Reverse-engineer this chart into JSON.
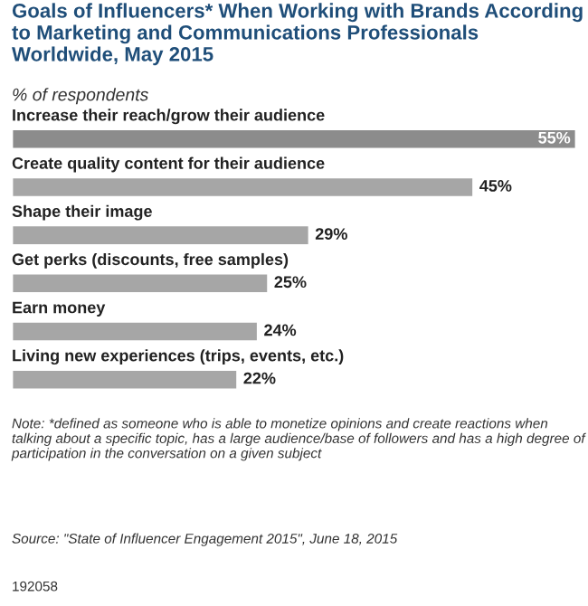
{
  "chart_data": {
    "type": "bar",
    "orientation": "horizontal",
    "title": "Goals of Influencers* When Working with Brands According to Marketing and Communications Professionals Worldwide, May 2015",
    "subtitle": "% of respondents",
    "categories": [
      "Increase their reach/grow their audience",
      "Create quality content for their audience",
      "Shape their image",
      "Get perks (discounts, free samples)",
      "Earn money",
      "Living new experiences (trips, events, etc.)"
    ],
    "values": [
      55,
      45,
      29,
      25,
      24,
      22
    ],
    "colors": [
      "#8c8c8c",
      "#a6a6a6",
      "#a6a6a6",
      "#a6a6a6",
      "#a6a6a6",
      "#a6a6a6"
    ],
    "value_labels": [
      "55%",
      "45%",
      "29%",
      "25%",
      "24%",
      "22%"
    ],
    "annotations": [
      "Note: *defined as someone who is able to monetize opinions and create reactions when talking about a specific topic, has a large audience/base of followers and has a high degree of participation in the conversation on a given subject",
      "Source: \"State of Influencer Engagement 2015\", June 18, 2015",
      "192058"
    ]
  }
}
